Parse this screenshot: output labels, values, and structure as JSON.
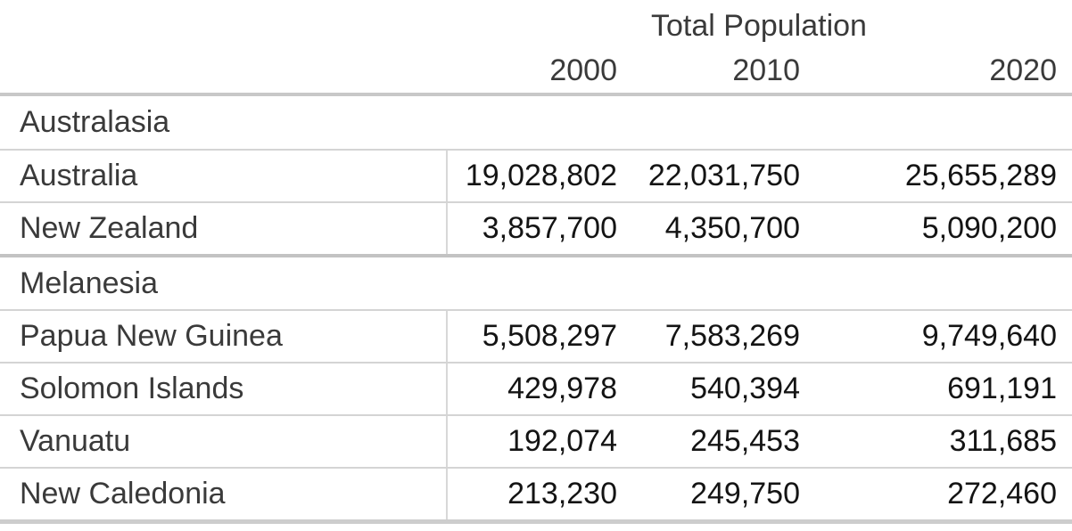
{
  "table": {
    "title": "Total Population",
    "year_headers": [
      "2000",
      "2010",
      "2020"
    ],
    "sections": [
      {
        "name": "Australasia",
        "rows": [
          {
            "country": "Australia",
            "values": [
              "19,028,802",
              "22,031,750",
              "25,655,289"
            ]
          },
          {
            "country": "New Zealand",
            "values": [
              "3,857,700",
              "4,350,700",
              "5,090,200"
            ]
          }
        ]
      },
      {
        "name": "Melanesia",
        "rows": [
          {
            "country": "Papua New Guinea",
            "values": [
              "5,508,297",
              "7,583,269",
              "9,749,640"
            ]
          },
          {
            "country": "Solomon Islands",
            "values": [
              "429,978",
              "540,394",
              "691,191"
            ]
          },
          {
            "country": "Vanuatu",
            "values": [
              "192,074",
              "245,453",
              "311,685"
            ]
          },
          {
            "country": "New Caledonia",
            "values": [
              "213,230",
              "249,750",
              "272,460"
            ]
          }
        ]
      }
    ]
  },
  "colors": {
    "background": "#ffffff",
    "label_text": "#3a3a3a",
    "number_text": "#141414",
    "header_border": "#c8c8c8",
    "row_separator": "#d4d4d4",
    "section_border": "#c3c3c3",
    "column_divider": "#d8d8d8",
    "bottom_border": "#cdcdcd"
  },
  "chart_data": {
    "type": "table",
    "title": "Total Population",
    "columns": [
      "2000",
      "2010",
      "2020"
    ],
    "sections": [
      {
        "group": "Australasia",
        "rows": [
          {
            "label": "Australia",
            "values": [
              19028802,
              22031750,
              25655289
            ]
          },
          {
            "label": "New Zealand",
            "values": [
              3857700,
              4350700,
              5090200
            ]
          }
        ]
      },
      {
        "group": "Melanesia",
        "rows": [
          {
            "label": "Papua New Guinea",
            "values": [
              5508297,
              7583269,
              9749640
            ]
          },
          {
            "label": "Solomon Islands",
            "values": [
              429978,
              540394,
              691191
            ]
          },
          {
            "label": "Vanuatu",
            "values": [
              192074,
              245453,
              311685
            ]
          },
          {
            "label": "New Caledonia",
            "values": [
              213230,
              249750,
              272460
            ]
          }
        ]
      }
    ]
  }
}
